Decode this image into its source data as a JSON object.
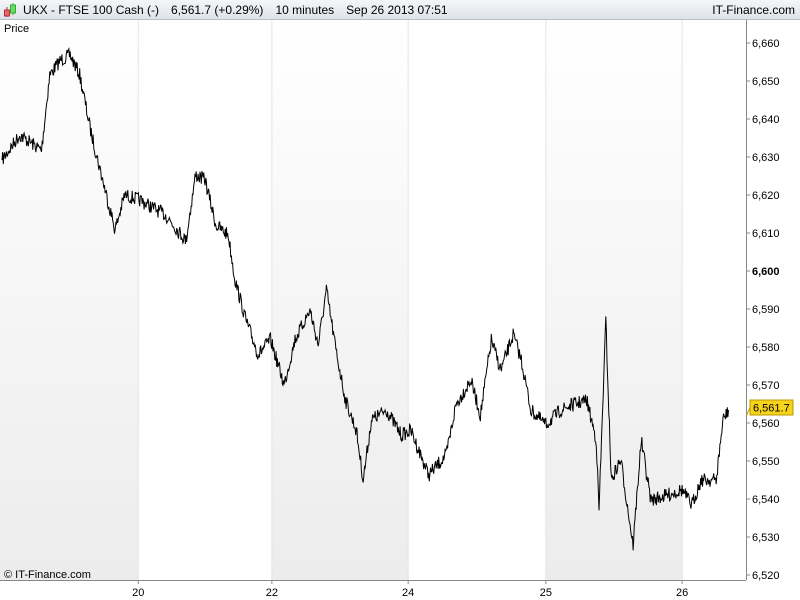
{
  "header": {
    "symbol": "UKX - FTSE 100 Cash (-)",
    "quote": "6,561.7 (+0.29%)",
    "interval": "10 minutes",
    "datetime": "Sep 26 2013 07:51",
    "brand": "IT-Finance.com"
  },
  "panel_label": "Price",
  "watermark": "© IT-Finance.com",
  "colors": {
    "line": "#000000",
    "last_price_bg": "#f7d21a",
    "band": "#eeeeee"
  },
  "chart_data": {
    "type": "line",
    "title": "",
    "ylim": [
      6518,
      6666
    ],
    "yticks": [
      6520,
      6530,
      6540,
      6550,
      6560,
      6570,
      6580,
      6590,
      6600,
      6610,
      6620,
      6630,
      6640,
      6650,
      6660
    ],
    "ytick_labels": [
      "6,520",
      "6,530",
      "6,540",
      "6,550",
      "6,560",
      "6,570",
      "6,580",
      "6,590",
      "6,600",
      "6,610",
      "6,620",
      "6,630",
      "6,640",
      "6,650",
      "6,660"
    ],
    "xticks": [
      {
        "label": "20",
        "at": 1.0
      },
      {
        "label": "22",
        "at": 1.98
      },
      {
        "label": "24",
        "at": 2.98
      },
      {
        "label": "25",
        "at": 3.99
      },
      {
        "label": "26",
        "at": 4.99
      }
    ],
    "last_price_label": "6,561.7",
    "last_price": 6561.7,
    "grid": false,
    "x": [
      0,
      0.13,
      0.29,
      0.35,
      0.43,
      0.5,
      0.57,
      0.65,
      0.72,
      0.83,
      0.9,
      1.01,
      1.2,
      1.35,
      1.42,
      1.49,
      1.57,
      1.66,
      1.71,
      1.79,
      1.88,
      1.97,
      2.07,
      2.15,
      2.26,
      2.32,
      2.38,
      2.45,
      2.52,
      2.6,
      2.65,
      2.71,
      2.82,
      2.93,
      3.0,
      3.13,
      3.26,
      3.33,
      3.44,
      3.51,
      3.59,
      3.66,
      3.75,
      3.81,
      3.88,
      3.99,
      4.1,
      4.18,
      4.29,
      4.36,
      4.38,
      4.43,
      4.47,
      4.54,
      4.63,
      4.69,
      4.76,
      4.88,
      4.99,
      5.06,
      5.13,
      5.24,
      5.29,
      5.33
    ],
    "y": [
      6629.2,
      6635.8,
      6631.8,
      6651.6,
      6655.5,
      6656.8,
      6651.6,
      6637,
      6626.6,
      6610.8,
      6620,
      6618.7,
      6614.7,
      6608,
      6625.3,
      6624,
      6612,
      6609.5,
      6597.6,
      6587,
      6578,
      6582,
      6570,
      6582,
      6589.7,
      6580.5,
      6595,
      6579.2,
      6566,
      6558,
      6545,
      6560.8,
      6563.4,
      6556.8,
      6558,
      6546.3,
      6551.6,
      6564.7,
      6571.3,
      6562,
      6581.8,
      6573.9,
      6583.2,
      6576.6,
      6563.4,
      6559.5,
      6563.4,
      6564.7,
      6566,
      6555.5,
      6537,
      6587.1,
      6545,
      6550.3,
      6527.9,
      6555.5,
      6539.7,
      6541,
      6542.4,
      6538.4,
      6545,
      6545,
      6560.8,
      6563.4
    ]
  }
}
